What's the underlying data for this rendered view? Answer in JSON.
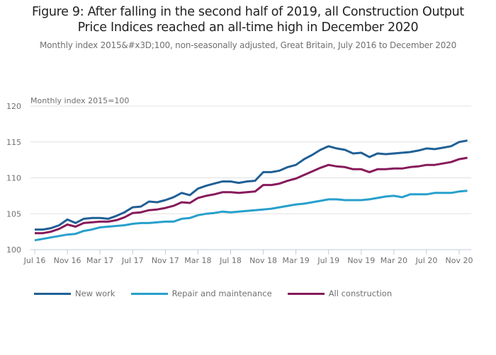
{
  "header": {
    "title_line1": "Figure 9: After falling in the second half of 2019, all Construction Output",
    "title_line2": "Price Indices reached an all-time high in December 2020",
    "subtitle": "Monthly index 2015&#x3D;100, non-seasonally adjusted, Great Britain, July 2016 to December 2020"
  },
  "chart_data": {
    "type": "line",
    "title": "Figure 9: After falling in the second half of 2019, all Construction Output Price Indices reached an all-time high in December 2020",
    "subtitle": "Monthly index 2015&#x3D;100, non-seasonally adjusted, Great Britain, July 2016 to December 2020",
    "xlabel": "",
    "ylabel": "Monthly index 2015=100",
    "ylim": [
      100,
      120
    ],
    "yticks": [
      100,
      105,
      110,
      115,
      120
    ],
    "grid": true,
    "legend_position": "bottom-left",
    "x": [
      "Jul 16",
      "Aug 16",
      "Sep 16",
      "Oct 16",
      "Nov 16",
      "Dec 16",
      "Jan 17",
      "Feb 17",
      "Mar 17",
      "Apr 17",
      "May 17",
      "Jun 17",
      "Jul 17",
      "Aug 17",
      "Sep 17",
      "Oct 17",
      "Nov 17",
      "Dec 17",
      "Jan 18",
      "Feb 18",
      "Mar 18",
      "Apr 18",
      "May 18",
      "Jun 18",
      "Jul 18",
      "Aug 18",
      "Sep 18",
      "Oct 18",
      "Nov 18",
      "Dec 18",
      "Jan 19",
      "Feb 19",
      "Mar 19",
      "Apr 19",
      "May 19",
      "Jun 19",
      "Jul 19",
      "Aug 19",
      "Sep 19",
      "Oct 19",
      "Nov 19",
      "Dec 19",
      "Jan 20",
      "Feb 20",
      "Mar 20",
      "Apr 20",
      "May 20",
      "Jun 20",
      "Jul 20",
      "Aug 20",
      "Sep 20",
      "Oct 20",
      "Nov 20",
      "Dec 20"
    ],
    "xtick_labels": [
      "Jul 16",
      "Nov 16",
      "Mar 17",
      "Jul 17",
      "Nov 17",
      "Mar 18",
      "Jul 18",
      "Nov 18",
      "Mar 19",
      "Jul 19",
      "Nov 19",
      "Mar 20",
      "Jul 20",
      "Nov 20"
    ],
    "series": [
      {
        "name": "New work",
        "color": "#206095",
        "values": [
          102.8,
          102.8,
          103.0,
          103.4,
          104.2,
          103.7,
          104.3,
          104.4,
          104.4,
          104.3,
          104.7,
          105.2,
          105.9,
          106.0,
          106.7,
          106.6,
          106.9,
          107.3,
          107.9,
          107.6,
          108.5,
          108.9,
          109.2,
          109.5,
          109.5,
          109.3,
          109.5,
          109.6,
          110.8,
          110.8,
          111.0,
          111.5,
          111.8,
          112.6,
          113.2,
          113.9,
          114.4,
          114.1,
          113.9,
          113.4,
          113.5,
          112.9,
          113.4,
          113.3,
          113.4,
          113.5,
          113.6,
          113.8,
          114.1,
          114.0,
          114.2,
          114.4,
          115.0,
          115.2
        ]
      },
      {
        "name": "Repair and maintenance",
        "color": "#27a0cc",
        "values": [
          101.3,
          101.5,
          101.7,
          101.9,
          102.1,
          102.2,
          102.6,
          102.8,
          103.1,
          103.2,
          103.3,
          103.4,
          103.6,
          103.7,
          103.7,
          103.8,
          103.9,
          103.9,
          104.3,
          104.4,
          104.8,
          105.0,
          105.1,
          105.3,
          105.2,
          105.3,
          105.4,
          105.5,
          105.6,
          105.7,
          105.9,
          106.1,
          106.3,
          106.4,
          106.6,
          106.8,
          107.0,
          107.0,
          106.9,
          106.9,
          106.9,
          107.0,
          107.2,
          107.4,
          107.5,
          107.3,
          107.7,
          107.7,
          107.7,
          107.9,
          107.9,
          107.9,
          108.1,
          108.2
        ]
      },
      {
        "name": "All construction",
        "color": "#871a5b",
        "values": [
          102.3,
          102.3,
          102.5,
          102.9,
          103.5,
          103.2,
          103.7,
          103.8,
          103.9,
          103.9,
          104.1,
          104.5,
          105.1,
          105.2,
          105.5,
          105.6,
          105.8,
          106.1,
          106.6,
          106.5,
          107.2,
          107.5,
          107.7,
          108.0,
          108.0,
          107.9,
          108.0,
          108.1,
          109.0,
          109.0,
          109.2,
          109.6,
          109.9,
          110.4,
          110.9,
          111.4,
          111.8,
          111.6,
          111.5,
          111.2,
          111.2,
          110.8,
          111.2,
          111.2,
          111.3,
          111.3,
          111.5,
          111.6,
          111.8,
          111.8,
          112.0,
          112.2,
          112.6,
          112.8
        ]
      }
    ]
  }
}
